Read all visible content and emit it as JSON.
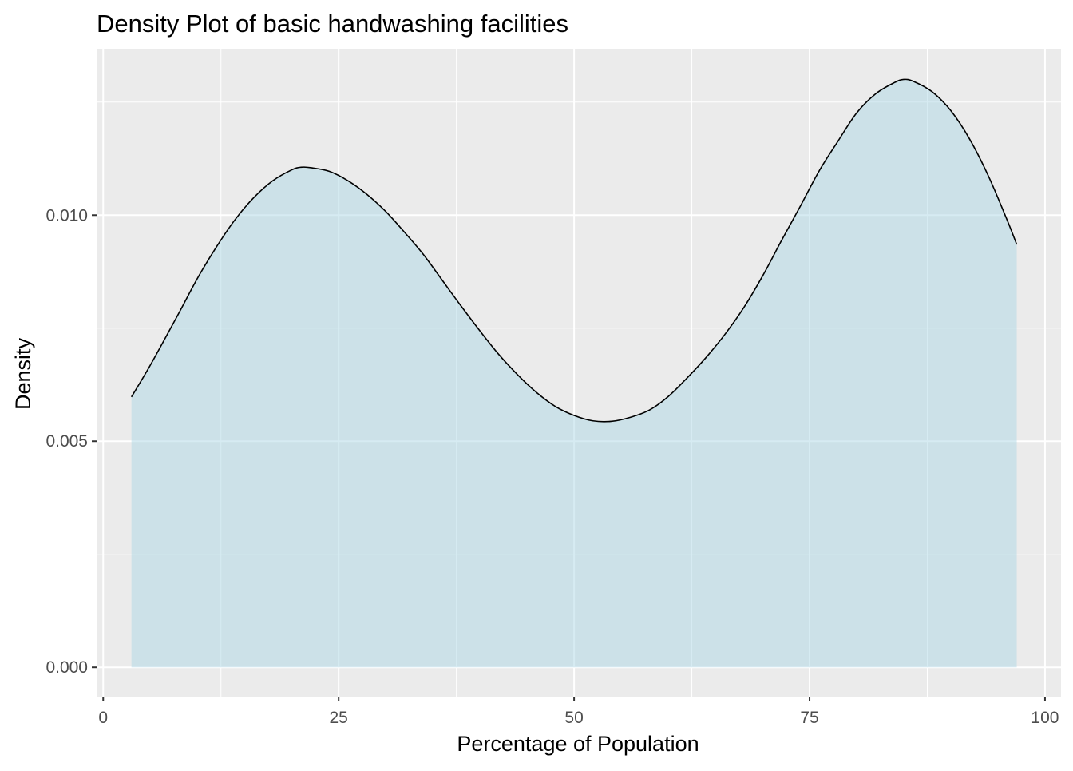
{
  "chart_data": {
    "type": "area",
    "title": "Density Plot of basic handwashing facilities",
    "xlabel": "Percentage of Population",
    "ylabel": "Density",
    "xlim": [
      -0.7,
      101.7
    ],
    "ylim": [
      -0.00065,
      0.01368
    ],
    "x_ticks": [
      0,
      25,
      50,
      75,
      100
    ],
    "x_tick_labels": [
      "0",
      "25",
      "50",
      "75",
      "100"
    ],
    "y_ticks": [
      0.0,
      0.005,
      0.01
    ],
    "y_tick_labels": [
      "0.000",
      "0.005",
      "0.010"
    ],
    "grid": true,
    "legend": "none",
    "series": [
      {
        "x": [
          3,
          5,
          8,
          10,
          12,
          14,
          16,
          18,
          20,
          21,
          22,
          24,
          26,
          28,
          30,
          32,
          34,
          36,
          38,
          40,
          42,
          44,
          46,
          48,
          50,
          52,
          54,
          56,
          58,
          60,
          62,
          64,
          66,
          68,
          70,
          72,
          74,
          76,
          78,
          80,
          82,
          84,
          85,
          86,
          88,
          90,
          92,
          94,
          96,
          97
        ],
        "values": [
          0.00598,
          0.00668,
          0.00782,
          0.0086,
          0.00929,
          0.0099,
          0.01039,
          0.01076,
          0.011,
          0.01106,
          0.01105,
          0.01097,
          0.01076,
          0.01046,
          0.01008,
          0.00962,
          0.00913,
          0.00856,
          0.00799,
          0.00744,
          0.00692,
          0.00647,
          0.00608,
          0.00577,
          0.00557,
          0.00545,
          0.00544,
          0.00553,
          0.00569,
          0.00599,
          0.0064,
          0.00685,
          0.00736,
          0.00795,
          0.00865,
          0.00943,
          0.01019,
          0.01097,
          0.01163,
          0.01226,
          0.01268,
          0.01293,
          0.013,
          0.01296,
          0.01273,
          0.01231,
          0.01168,
          0.01086,
          0.00988,
          0.00935
        ]
      }
    ],
    "colors": {
      "panel_background": "#EBEBEB",
      "grid_major": "#FFFFFF",
      "area_fill": "#ADD8E6",
      "area_alpha": 0.5,
      "line": "#000000",
      "tick_label": "#4D4D4D",
      "axis_title": "#000000"
    }
  }
}
